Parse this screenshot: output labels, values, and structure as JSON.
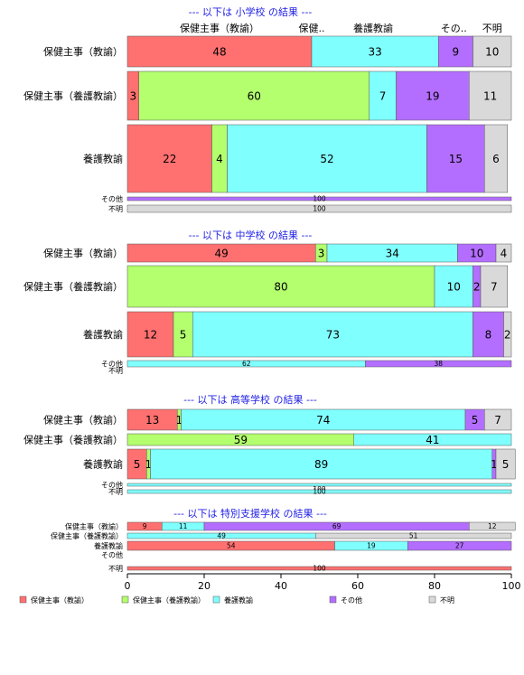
{
  "chart_data": {
    "type": "bar",
    "orientation": "horizontal",
    "stacked": true,
    "xlim": [
      0,
      100
    ],
    "x_ticks": [
      0,
      20,
      40,
      60,
      80,
      100
    ],
    "colors": {
      "保健主事（教諭）": "#ff7070",
      "保健主事（養護教諭）": "#b3ff6e",
      "養護教諭": "#80ffff",
      "その他": "#b36eff",
      "不明": "#d9d9d9"
    },
    "legend": {
      "placement": "bottom",
      "entries": [
        "保健主事（教諭）",
        "保健主事（養護教諭）",
        "養護教諭",
        "その他",
        "不明"
      ]
    },
    "column_headers": [
      {
        "label": "保健主事（教諭）",
        "x": 24
      },
      {
        "label": "保健..",
        "x": 48
      },
      {
        "label": "養護教諭",
        "x": 64
      },
      {
        "label": "その..",
        "x": 85
      },
      {
        "label": "不明",
        "x": 95
      }
    ],
    "panels": [
      {
        "title": "--- 以下は 小学校 の結果 ---",
        "rows": [
          {
            "label": "保健主事（教諭）",
            "values": [
              48,
              0,
              33,
              9,
              10
            ],
            "labels": [
              "48",
              "",
              "33",
              "9",
              "10"
            ]
          },
          {
            "label": "保健主事（養護教諭）",
            "values": [
              3,
              60,
              7,
              19,
              11
            ],
            "labels": [
              "3",
              "60",
              "7",
              "19",
              "11"
            ]
          },
          {
            "label": "養護教諭",
            "values": [
              22,
              4,
              52,
              15,
              6
            ],
            "labels": [
              "22",
              "4",
              "52",
              "15",
              "6"
            ]
          },
          {
            "label": "その他",
            "values": [
              0,
              0,
              0,
              100,
              0
            ],
            "labels": [
              "",
              "",
              "",
              "100",
              ""
            ]
          },
          {
            "label": "不明",
            "values": [
              0,
              0,
              0,
              0,
              100
            ],
            "labels": [
              "",
              "",
              "",
              "",
              "100"
            ]
          }
        ]
      },
      {
        "title": "--- 以下は 中学校 の結果 ---",
        "rows": [
          {
            "label": "保健主事（教諭）",
            "values": [
              49,
              3,
              34,
              10,
              4
            ],
            "labels": [
              "49",
              "3",
              "34",
              "10",
              "4"
            ]
          },
          {
            "label": "保健主事（養護教諭）",
            "values": [
              0,
              80,
              10,
              2,
              7
            ],
            "labels": [
              "",
              "80",
              "10",
              "2",
              "7"
            ]
          },
          {
            "label": "養護教諭",
            "values": [
              12,
              5,
              73,
              8,
              2
            ],
            "labels": [
              "12",
              "5",
              "73",
              "8",
              "2"
            ]
          },
          {
            "label": "その他",
            "values": [
              0,
              0,
              62,
              38,
              0
            ],
            "labels": [
              "",
              "",
              "62",
              "38",
              ""
            ]
          },
          {
            "label": "不明",
            "values": [
              0,
              0,
              0,
              0,
              0
            ],
            "labels": [
              "",
              "",
              "",
              "",
              ""
            ]
          }
        ]
      },
      {
        "title": "--- 以下は 高等学校 の結果 ---",
        "rows": [
          {
            "label": "保健主事（教諭）",
            "values": [
              13,
              1,
              74,
              5,
              7
            ],
            "labels": [
              "13",
              "1",
              "74",
              "5",
              "7"
            ]
          },
          {
            "label": "保健主事（養護教諭）",
            "values": [
              0,
              59,
              41,
              0,
              0
            ],
            "labels": [
              "",
              "59",
              "41",
              "",
              ""
            ]
          },
          {
            "label": "養護教諭",
            "values": [
              5,
              1,
              89,
              1,
              5
            ],
            "labels": [
              "5",
              "1",
              "89",
              "1",
              "5"
            ]
          },
          {
            "label": "その他",
            "values": [
              0,
              0,
              100,
              0,
              0
            ],
            "labels": [
              "",
              "",
              "100",
              "",
              ""
            ]
          },
          {
            "label": "不明",
            "values": [
              0,
              0,
              100,
              0,
              0
            ],
            "labels": [
              "",
              "",
              "100",
              "",
              ""
            ]
          }
        ]
      },
      {
        "title": "--- 以下は 特別支援学校 の結果 ---",
        "rows": [
          {
            "label": "保健主事（教諭）",
            "values": [
              9,
              0,
              11,
              69,
              12
            ],
            "labels": [
              "9",
              "",
              "11",
              "69",
              "12"
            ]
          },
          {
            "label": "保健主事（養護教諭）",
            "values": [
              0,
              0,
              49,
              0,
              51
            ],
            "labels": [
              "",
              "",
              "49",
              "",
              "51"
            ]
          },
          {
            "label": "養護教諭",
            "values": [
              54,
              0,
              19,
              27,
              0
            ],
            "labels": [
              "54",
              "",
              "19",
              "27",
              ""
            ]
          },
          {
            "label": "その他",
            "values": [
              0,
              0,
              0,
              0,
              0
            ],
            "labels": [
              "",
              "",
              "",
              "",
              ""
            ]
          },
          {
            "label": "不明",
            "values": [
              100,
              0,
              0,
              0,
              0
            ],
            "labels": [
              "100",
              "",
              "",
              "",
              ""
            ]
          }
        ]
      }
    ]
  }
}
